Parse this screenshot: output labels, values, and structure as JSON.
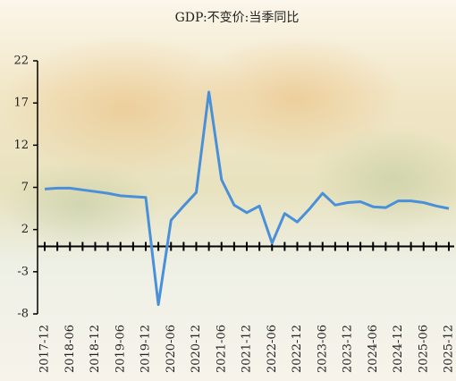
{
  "chart_data": {
    "type": "line",
    "title": "GDP:不变价:当季同比",
    "categories": [
      "2017-12",
      null,
      "2018-06",
      null,
      "2018-12",
      null,
      "2019-06",
      null,
      "2019-12",
      null,
      "2020-06",
      null,
      "2020-12",
      null,
      "2021-06",
      null,
      "2021-12",
      null,
      "2022-06",
      null,
      "2022-12",
      null,
      "2023-06",
      null,
      "2023-12",
      null,
      "2024-06",
      null,
      "2024-12",
      null,
      "2025-06",
      null,
      "2025-12"
    ],
    "series": [
      {
        "name": "GDP:不变价:当季同比",
        "color": "#4a90d9",
        "values": [
          6.8,
          6.9,
          6.9,
          6.7,
          6.5,
          6.3,
          6.0,
          5.9,
          5.8,
          -6.9,
          3.1,
          4.8,
          6.4,
          18.3,
          7.9,
          4.9,
          4.0,
          4.8,
          0.4,
          3.9,
          2.9,
          4.5,
          6.3,
          4.9,
          5.2,
          5.3,
          4.7,
          4.6,
          5.4,
          5.4,
          5.2,
          4.8,
          4.5
        ]
      }
    ],
    "ylim": [
      -8,
      22
    ],
    "yticks": [
      -8,
      -3,
      2,
      7,
      12,
      17,
      22
    ],
    "grid": false
  }
}
